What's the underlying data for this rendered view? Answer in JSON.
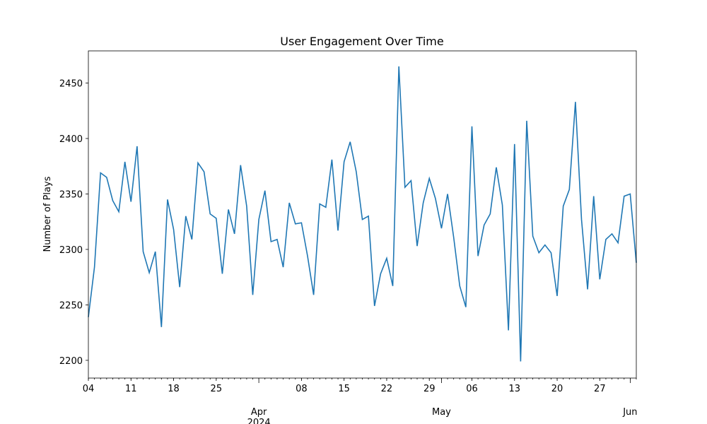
{
  "chart_data": {
    "type": "line",
    "title": "User Engagement Over Time",
    "y_label": "Number of Plays",
    "x": [
      "2024-03-04",
      "2024-03-05",
      "2024-03-06",
      "2024-03-07",
      "2024-03-08",
      "2024-03-09",
      "2024-03-10",
      "2024-03-11",
      "2024-03-12",
      "2024-03-13",
      "2024-03-14",
      "2024-03-15",
      "2024-03-16",
      "2024-03-17",
      "2024-03-18",
      "2024-03-19",
      "2024-03-20",
      "2024-03-21",
      "2024-03-22",
      "2024-03-23",
      "2024-03-24",
      "2024-03-25",
      "2024-03-26",
      "2024-03-27",
      "2024-03-28",
      "2024-03-29",
      "2024-03-30",
      "2024-03-31",
      "2024-04-01",
      "2024-04-02",
      "2024-04-03",
      "2024-04-04",
      "2024-04-05",
      "2024-04-06",
      "2024-04-07",
      "2024-04-08",
      "2024-04-09",
      "2024-04-10",
      "2024-04-11",
      "2024-04-12",
      "2024-04-13",
      "2024-04-14",
      "2024-04-15",
      "2024-04-16",
      "2024-04-17",
      "2024-04-18",
      "2024-04-19",
      "2024-04-20",
      "2024-04-21",
      "2024-04-22",
      "2024-04-23",
      "2024-04-24",
      "2024-04-25",
      "2024-04-26",
      "2024-04-27",
      "2024-04-28",
      "2024-04-29",
      "2024-04-30",
      "2024-05-01",
      "2024-05-02",
      "2024-05-03",
      "2024-05-04",
      "2024-05-05",
      "2024-05-06",
      "2024-05-07",
      "2024-05-08",
      "2024-05-09",
      "2024-05-10",
      "2024-05-11",
      "2024-05-12",
      "2024-05-13",
      "2024-05-14",
      "2024-05-15",
      "2024-05-16",
      "2024-05-17",
      "2024-05-18",
      "2024-05-19",
      "2024-05-20",
      "2024-05-21",
      "2024-05-22",
      "2024-05-23",
      "2024-05-24",
      "2024-05-25",
      "2024-05-26",
      "2024-05-27",
      "2024-05-28",
      "2024-05-29",
      "2024-05-30",
      "2024-05-31",
      "2024-06-01",
      "2024-06-02"
    ],
    "series": [
      {
        "name": "Number of Plays",
        "color": "#1f77b4",
        "values": [
          2239,
          2284,
          2369,
          2365,
          2344,
          2334,
          2379,
          2343,
          2393,
          2298,
          2279,
          2298,
          2230,
          2345,
          2318,
          2266,
          2330,
          2309,
          2378,
          2370,
          2332,
          2328,
          2278,
          2336,
          2314,
          2376,
          2339,
          2259,
          2327,
          2353,
          2307,
          2309,
          2284,
          2342,
          2323,
          2324,
          2294,
          2259,
          2341,
          2338,
          2381,
          2317,
          2379,
          2397,
          2370,
          2327,
          2330,
          2249,
          2278,
          2292,
          2267,
          2465,
          2356,
          2362,
          2303,
          2342,
          2364,
          2346,
          2319,
          2350,
          2311,
          2267,
          2248,
          2411,
          2294,
          2322,
          2332,
          2374,
          2340,
          2227,
          2395,
          2199,
          2416,
          2312,
          2297,
          2304,
          2297,
          2258,
          2339,
          2354,
          2433,
          2327,
          2264,
          2348,
          2273,
          2309,
          2314,
          2306,
          2348,
          2350,
          2288
        ]
      }
    ],
    "xlim": [
      "2024-03-04",
      "2024-06-02"
    ],
    "ylim": [
      2184,
      2479
    ],
    "yticks": [
      2200,
      2250,
      2300,
      2350,
      2400,
      2450
    ],
    "xticks": [
      {
        "value": "2024-03-04",
        "label": "04"
      },
      {
        "value": "2024-03-11",
        "label": "11"
      },
      {
        "value": "2024-03-18",
        "label": "18"
      },
      {
        "value": "2024-03-25",
        "label": "25"
      },
      {
        "value": "2024-04-08",
        "label": "08"
      },
      {
        "value": "2024-04-15",
        "label": "15"
      },
      {
        "value": "2024-04-22",
        "label": "22"
      },
      {
        "value": "2024-04-29",
        "label": "29"
      },
      {
        "value": "2024-05-06",
        "label": "06"
      },
      {
        "value": "2024-05-13",
        "label": "13"
      },
      {
        "value": "2024-05-20",
        "label": "20"
      },
      {
        "value": "2024-05-27",
        "label": "27"
      }
    ],
    "xticks_major": [
      {
        "value": "2024-04-01",
        "label": "Apr\n2024"
      },
      {
        "value": "2024-05-01",
        "label": "May"
      },
      {
        "value": "2024-06-01",
        "label": "Jun"
      }
    ],
    "grid": false
  }
}
